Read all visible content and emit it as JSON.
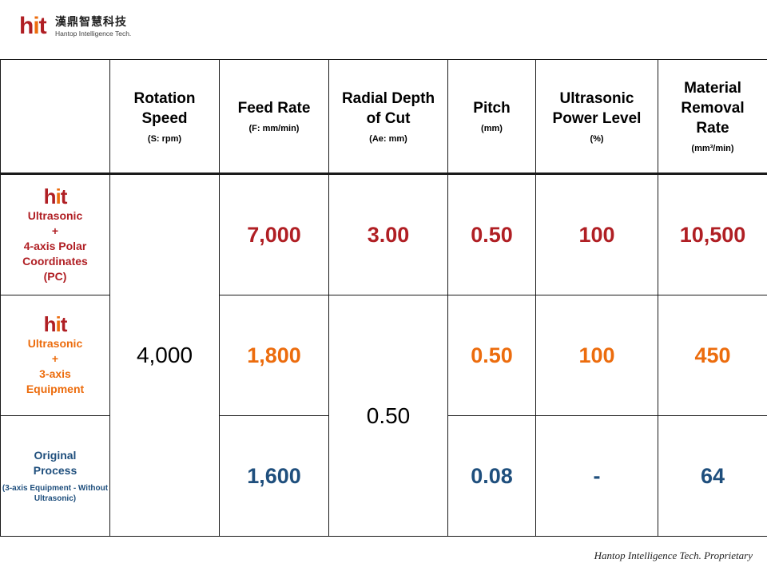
{
  "brand": {
    "mark": "hit",
    "name_cn": "漢鼎智慧科技",
    "name_en": "Hantop Intelligence Tech.",
    "colors": {
      "red": "#b01f24",
      "orange": "#ec6c0d",
      "blue": "#1f4f7d"
    }
  },
  "table": {
    "headers": [
      {
        "main": "",
        "sub": ""
      },
      {
        "main": "Rotation Speed",
        "sub": "(S: rpm)"
      },
      {
        "main": "Feed Rate",
        "sub": "(F: mm/min)"
      },
      {
        "main": "Radial Depth of Cut",
        "sub": "(Ae: mm)"
      },
      {
        "main": "Pitch",
        "sub": "(mm)"
      },
      {
        "main": "Ultrasonic Power Level",
        "sub": "(%)"
      },
      {
        "main": "Material Removal Rate",
        "sub": "(mm³/min)"
      }
    ],
    "rows": [
      {
        "logo": "hit",
        "label_lines": [
          "Ultrasonic",
          "+",
          "4-axis Polar",
          "Coordinates",
          "(PC)"
        ],
        "color": "red",
        "feed_rate": "7,000",
        "radial_depth": "3.00",
        "pitch": "0.50",
        "ultrasonic_power": "100",
        "removal_rate": "10,500"
      },
      {
        "logo": "hit",
        "label_lines": [
          "Ultrasonic",
          "+",
          "3-axis",
          "Equipment"
        ],
        "color": "orange",
        "feed_rate": "1,800",
        "pitch": "0.50",
        "ultrasonic_power": "100",
        "removal_rate": "450"
      },
      {
        "label_lines": [
          "Original",
          "Process"
        ],
        "label_sub": "(3-axis Equipment - Without Ultrasonic)",
        "color": "blue",
        "feed_rate": "1,600",
        "pitch": "0.08",
        "ultrasonic_power": "-",
        "removal_rate": "64"
      }
    ],
    "shared_rotation_speed": "4,000",
    "shared_radial_depth": "0.50"
  },
  "footer": "Hantop Intelligence Tech. Proprietary"
}
